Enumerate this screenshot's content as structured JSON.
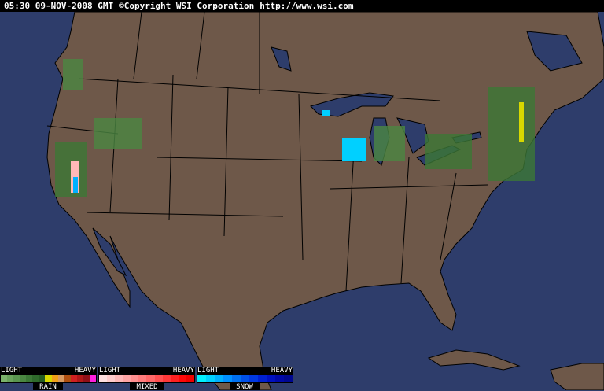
{
  "header": {
    "timestamp": "05:30 09-NOV-2008 GMT",
    "copyright": "©Copyright WSI Corporation",
    "url": "http://www.wsi.com"
  },
  "map": {
    "ocean_color": "#2e3d6b",
    "land_color": "#6e5849",
    "border_color": "#000000"
  },
  "legends": [
    {
      "name": "RAIN",
      "light": "LIGHT",
      "heavy": "HEAVY",
      "colors": [
        "#7bb36b",
        "#6aa35c",
        "#5a954f",
        "#4b8742",
        "#3c7836",
        "#2f6a2b",
        "#245c22",
        "#d8d800",
        "#f0a018",
        "#d89a60",
        "#b05010",
        "#d02020",
        "#b01818",
        "#901018",
        "#ff20e0"
      ]
    },
    {
      "name": "MIXED",
      "light": "LIGHT",
      "heavy": "HEAVY",
      "colors": [
        "#ffe0e0",
        "#ffcccc",
        "#ffb8b8",
        "#ffa4a4",
        "#ff9090",
        "#ff7c7c",
        "#ff6868",
        "#ff5050",
        "#ff3838",
        "#ff2020",
        "#ff0808",
        "#f00000"
      ]
    },
    {
      "name": "SNOW",
      "light": "LIGHT",
      "heavy": "HEAVY",
      "colors": [
        "#00f0ff",
        "#00d0ff",
        "#00b0ff",
        "#0090ff",
        "#0070f0",
        "#0050e8",
        "#0038e0",
        "#0020d0",
        "#0010c0",
        "#0008a8",
        "#000890"
      ]
    }
  ]
}
